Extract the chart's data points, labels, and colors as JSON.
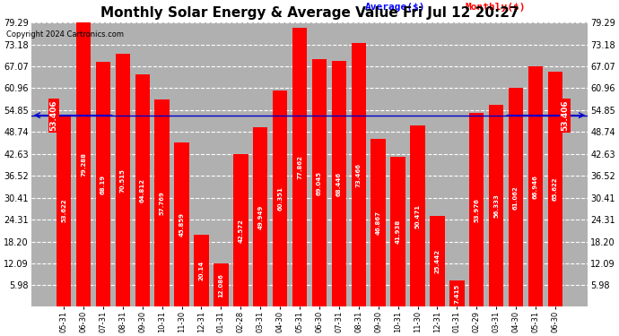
{
  "title": "Monthly Solar Energy & Average Value Fri Jul 12 20:27",
  "copyright": "Copyright 2024 Cartronics.com",
  "categories": [
    "05-31",
    "06-30",
    "07-31",
    "08-31",
    "09-30",
    "10-31",
    "11-30",
    "12-31",
    "01-31",
    "02-28",
    "03-31",
    "04-30",
    "05-31",
    "06-30",
    "07-31",
    "08-31",
    "09-30",
    "10-31",
    "11-30",
    "12-31",
    "01-31",
    "02-29",
    "03-31",
    "04-30",
    "05-31",
    "06-30"
  ],
  "values": [
    53.622,
    79.288,
    68.19,
    70.515,
    64.812,
    57.769,
    45.859,
    20.14,
    12.086,
    42.572,
    49.949,
    60.351,
    77.862,
    69.045,
    68.446,
    73.466,
    46.867,
    41.938,
    50.471,
    25.442,
    7.415,
    53.976,
    56.333,
    61.062,
    66.946,
    65.622
  ],
  "average": 53.406,
  "bar_color": "#ff0000",
  "avg_line_color": "#0000cc",
  "background_color": "#ffffff",
  "grid_color": "#ffffff",
  "plot_bg_color": "#b0b0b0",
  "yticks": [
    5.98,
    12.09,
    18.2,
    24.31,
    30.41,
    36.52,
    42.63,
    48.74,
    54.85,
    60.96,
    67.07,
    73.18,
    79.29
  ],
  "avg_label": "53.406",
  "legend_avg_color": "#0000ff",
  "legend_monthly_color": "#ff0000",
  "title_fontsize": 11,
  "bar_width": 0.75
}
